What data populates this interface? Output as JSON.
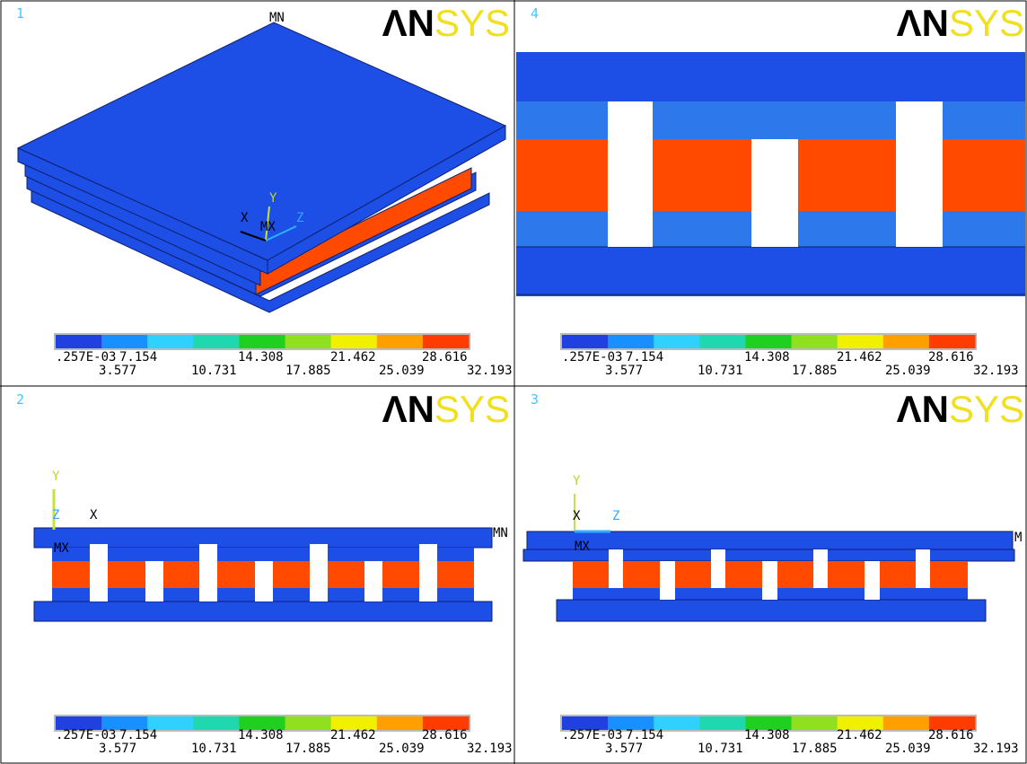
{
  "panels": [
    {
      "number": "1",
      "logo": {
        "left": "ΛN",
        "right": "SYS"
      },
      "labels": {
        "mn": "MN",
        "mx": "MX",
        "x": "X",
        "y": "Y",
        "z": "Z"
      },
      "legend": {
        "upper": [
          ".257E-03",
          "7.154",
          "14.308",
          "21.462",
          "28.616"
        ],
        "lower": [
          "3.577",
          "10.731",
          "17.885",
          "25.039",
          "32.193"
        ]
      }
    },
    {
      "number": "4",
      "logo": {
        "left": "ΛN",
        "right": "SYS"
      },
      "legend": {
        "upper": [
          ".257E-03",
          "7.154",
          "14.308",
          "21.462",
          "28.616"
        ],
        "lower": [
          "3.577",
          "10.731",
          "17.885",
          "25.039",
          "32.193"
        ]
      }
    },
    {
      "number": "2",
      "logo": {
        "left": "ΛN",
        "right": "SYS"
      },
      "labels": {
        "mn": "MN",
        "mx": "MX",
        "x": "X",
        "y": "Y",
        "z": "Z"
      },
      "legend": {
        "upper": [
          ".257E-03",
          "7.154",
          "14.308",
          "21.462",
          "28.616"
        ],
        "lower": [
          "3.577",
          "10.731",
          "17.885",
          "25.039",
          "32.193"
        ]
      }
    },
    {
      "number": "3",
      "logo": {
        "left": "ΛN",
        "right": "SYS"
      },
      "labels": {
        "mn": "M",
        "mx": "MX",
        "x": "X",
        "y": "Y",
        "z": "Z"
      },
      "legend": {
        "upper": [
          ".257E-03",
          "7.154",
          "14.308",
          "21.462",
          "28.616"
        ],
        "lower": [
          "3.577",
          "10.731",
          "17.885",
          "25.039",
          "32.193"
        ]
      }
    }
  ]
}
